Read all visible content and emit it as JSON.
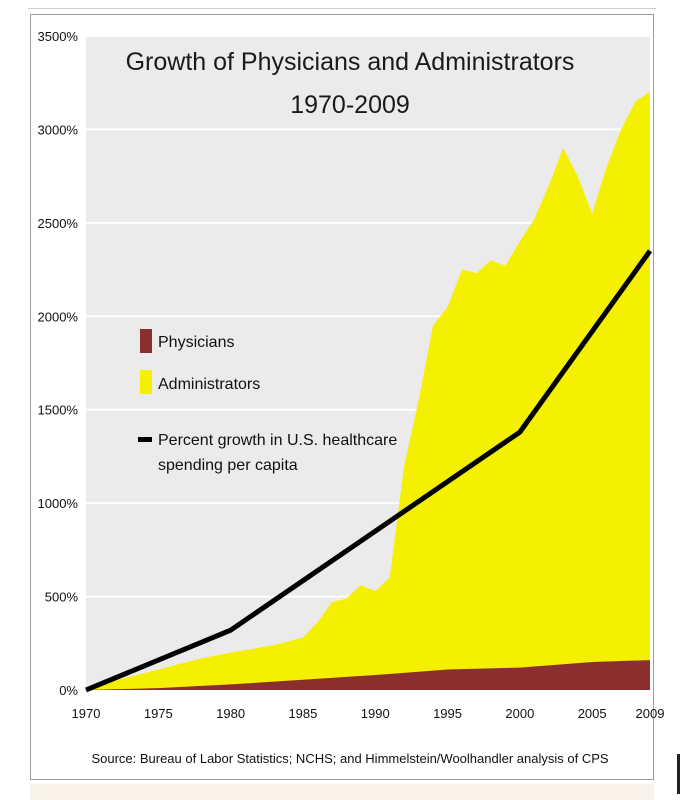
{
  "chart_data": {
    "type": "area",
    "title": "Growth of Physicians and Administrators",
    "subtitle": "1970-2009",
    "source": "Source: Bureau of Labor Statistics; NCHS; and Himmelstein/Woolhandler analysis of CPS",
    "xlabel": "",
    "ylabel": "",
    "xlim": [
      1970,
      2009
    ],
    "ylim": [
      0,
      3500
    ],
    "x_ticks": [
      "1970",
      "1975",
      "1980",
      "1985",
      "1990",
      "1995",
      "2000",
      "2005",
      "2009"
    ],
    "x_tick_values": [
      1970,
      1975,
      1980,
      1985,
      1990,
      1995,
      2000,
      2005,
      2009
    ],
    "y_ticks": [
      "0%",
      "500%",
      "1000%",
      "1500%",
      "2000%",
      "2500%",
      "3000%",
      "3500%"
    ],
    "y_tick_values": [
      0,
      500,
      1000,
      1500,
      2000,
      2500,
      3000,
      3500
    ],
    "grid": true,
    "legend_position": "middle-left",
    "colors": {
      "physicians": "#8b2e2e",
      "administrators": "#f5f000",
      "healthcare_spending": "#000000",
      "plot_background": "#ebebeb",
      "gridline": "#ffffff"
    },
    "series": [
      {
        "name": "Administrators",
        "kind": "area",
        "x": [
          1970,
          1972,
          1975,
          1978,
          1980,
          1983,
          1985,
          1986,
          1987,
          1988,
          1989,
          1990,
          1991,
          1992,
          1993,
          1994,
          1995,
          1996,
          1997,
          1998,
          1999,
          2000,
          2001,
          2002,
          2003,
          2004,
          2005,
          2006,
          2007,
          2008,
          2009
        ],
        "values": [
          0,
          50,
          110,
          170,
          200,
          240,
          280,
          360,
          470,
          490,
          560,
          530,
          600,
          1200,
          1550,
          1950,
          2050,
          2250,
          2230,
          2300,
          2270,
          2400,
          2520,
          2700,
          2900,
          2750,
          2550,
          2800,
          3000,
          3150,
          3200
        ]
      },
      {
        "name": "Physicians",
        "kind": "area",
        "x": [
          1970,
          1975,
          1980,
          1985,
          1990,
          1995,
          2000,
          2005,
          2009
        ],
        "values": [
          0,
          10,
          30,
          55,
          80,
          110,
          120,
          150,
          160
        ]
      },
      {
        "name": "Percent growth in U.S. healthcare spending per capita",
        "kind": "line",
        "x": [
          1970,
          1980,
          1990,
          2000,
          2009
        ],
        "values": [
          0,
          320,
          850,
          1380,
          2350
        ]
      }
    ],
    "legend": [
      {
        "label": "Physicians",
        "series": "Physicians"
      },
      {
        "label": "Administrators",
        "series": "Administrators"
      },
      {
        "label_lines": [
          "Percent growth in U.S. healthcare",
          "spending per capita"
        ],
        "series": "Percent growth in U.S. healthcare spending per capita"
      }
    ]
  }
}
